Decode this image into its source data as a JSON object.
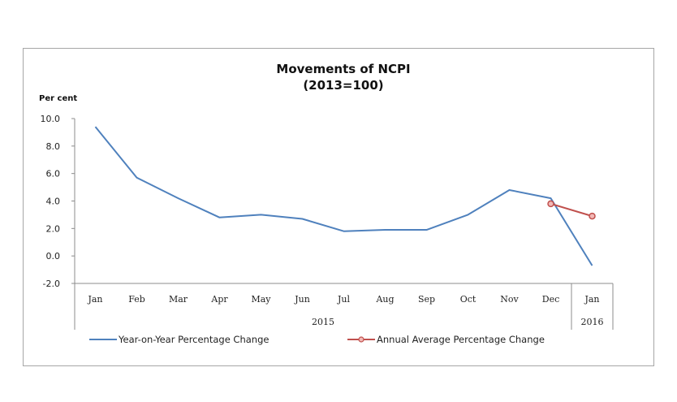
{
  "chart_data": {
    "type": "line",
    "title": "Movements of NCPI",
    "subtitle": "(2013=100)",
    "xlabel": "",
    "ylabel": "Per cent",
    "ylim": [
      -2.0,
      10.0
    ],
    "ytick_labels": [
      "10.0",
      "8.0",
      "6.0",
      "4.0",
      "2.0",
      "0.0",
      "-2.0"
    ],
    "yticks": [
      10,
      8,
      6,
      4,
      2,
      0,
      -2
    ],
    "categories": [
      "Jan",
      "Feb",
      "Mar",
      "Apr",
      "May",
      "Jun",
      "Jul",
      "Aug",
      "Sep",
      "Oct",
      "Nov",
      "Dec",
      "Jan"
    ],
    "groups": [
      {
        "label": "2015",
        "start": 0,
        "end": 11
      },
      {
        "label": "2016",
        "start": 12,
        "end": 12
      }
    ],
    "grid": false,
    "legend_position": "bottom",
    "series": [
      {
        "name": "Year-on-Year Percentage Change",
        "color": "#4f81bd",
        "values": [
          9.4,
          5.7,
          4.2,
          2.8,
          3.0,
          2.7,
          1.8,
          1.9,
          1.9,
          3.0,
          4.8,
          4.2,
          -0.7
        ]
      },
      {
        "name": "Annual Average Percentage Change",
        "color": "#c0504d",
        "marker": "circle",
        "values": [
          null,
          null,
          null,
          null,
          null,
          null,
          null,
          null,
          null,
          null,
          null,
          3.8,
          2.9
        ]
      }
    ]
  }
}
